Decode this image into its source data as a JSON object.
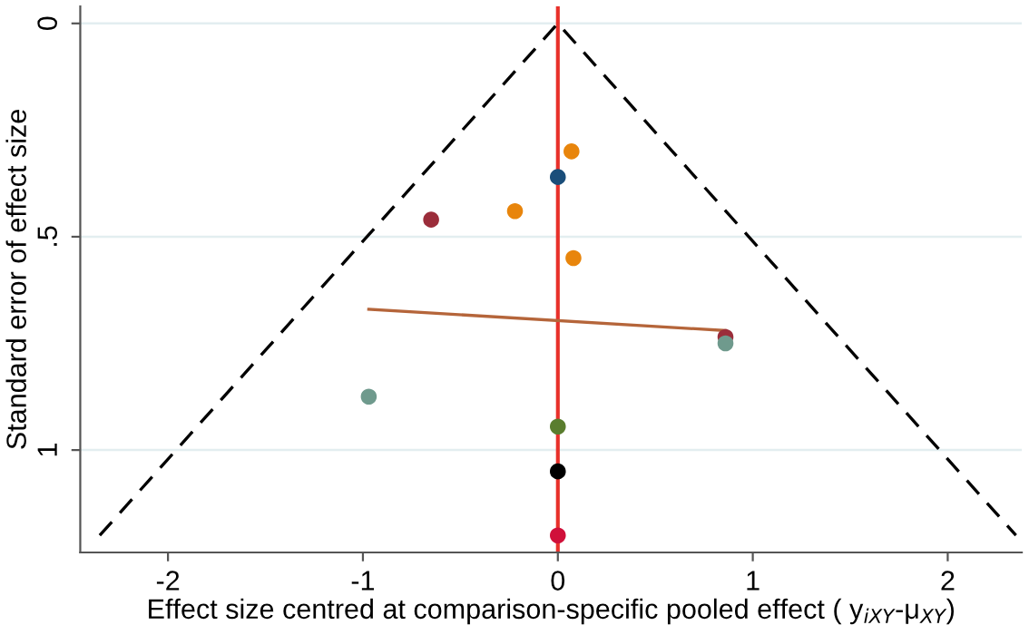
{
  "chart_data": {
    "type": "scatter",
    "xlabel": "Effect size centred at comparison-specific pooled effect ( y$_{iXY}$-μ$_{XY}$)",
    "ylabel": "Standard error of effect size",
    "xlim": [
      -2.45,
      2.38
    ],
    "ylim": [
      1.24,
      -0.04
    ],
    "xticks": [
      -2,
      -1,
      0,
      1,
      2
    ],
    "yticks": [
      0,
      {
        "value": 0.5,
        "label": ".5"
      },
      1
    ],
    "grid": "y",
    "marker": "circle",
    "ref_lines": [
      {
        "axis": "x",
        "value": 0,
        "color": "#e8302a"
      }
    ],
    "series": [
      {
        "type": "line",
        "color": "#000000",
        "line_style": "dashed",
        "marker": "none",
        "x": [
          -2.35,
          0,
          2.35
        ],
        "values": [
          1.2,
          0,
          1.2
        ]
      },
      {
        "type": "line",
        "color": "#b5653a",
        "line_style": "solid",
        "marker": "none",
        "x": [
          -0.97,
          0.86
        ],
        "values": [
          0.67,
          0.72
        ]
      },
      {
        "color": "#e8850c",
        "x": [
          0.07,
          -0.22,
          0.08
        ],
        "values": [
          0.3,
          0.44,
          0.55
        ]
      },
      {
        "color": "#1a4e7a",
        "x": [
          0
        ],
        "values": [
          0.36
        ]
      },
      {
        "color": "#9b2d3a",
        "x": [
          -0.65,
          0.86
        ],
        "values": [
          0.46,
          0.735
        ]
      },
      {
        "color": "#6f9a8d",
        "x": [
          0.86,
          -0.97
        ],
        "values": [
          0.75,
          0.875
        ]
      },
      {
        "color": "#5a7d2e",
        "x": [
          0
        ],
        "values": [
          0.945
        ]
      },
      {
        "color": "#000000",
        "x": [
          0
        ],
        "values": [
          1.05
        ]
      },
      {
        "color": "#d0103a",
        "x": [
          0
        ],
        "values": [
          1.2
        ]
      }
    ]
  }
}
